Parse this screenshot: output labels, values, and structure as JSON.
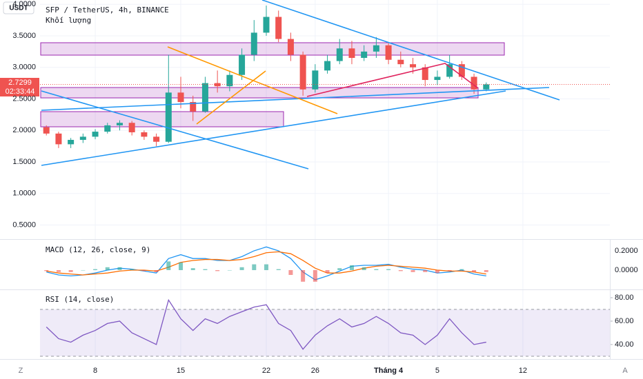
{
  "ui": {
    "currency": "USDT",
    "countdown": "02:33:44",
    "left_button": "Z",
    "right_button": "A"
  },
  "chart_data": [
    {
      "type": "candlestick",
      "title": "SFP / TetherUS, 4h, BINANCE",
      "subtitle": "Khối lượng",
      "up_color": "#26a69a",
      "down_color": "#ef5350",
      "x": [
        4,
        5,
        6,
        7,
        8,
        9,
        10,
        11,
        12,
        13,
        14,
        15,
        16,
        17,
        18,
        19,
        20,
        21,
        22,
        23,
        24,
        25,
        26,
        27,
        28,
        29,
        30,
        31,
        32,
        33,
        34,
        35,
        36,
        37,
        38,
        39,
        40
      ],
      "open": [
        2.05,
        1.95,
        1.78,
        1.85,
        1.9,
        1.98,
        2.08,
        2.12,
        1.97,
        1.9,
        1.82,
        2.6,
        2.45,
        2.3,
        2.75,
        2.7,
        2.88,
        3.2,
        3.55,
        3.8,
        3.45,
        3.2,
        2.65,
        2.95,
        3.1,
        3.3,
        3.15,
        3.25,
        3.35,
        3.12,
        3.05,
        3.0,
        2.8,
        2.85,
        3.05,
        2.85,
        2.65
      ],
      "high": [
        2.08,
        1.98,
        1.88,
        1.95,
        2.02,
        2.12,
        2.16,
        2.15,
        2.0,
        1.95,
        3.2,
        2.85,
        2.55,
        2.85,
        2.95,
        2.95,
        3.3,
        3.75,
        3.98,
        3.9,
        3.55,
        3.25,
        3.05,
        3.2,
        3.45,
        3.42,
        3.35,
        3.48,
        3.4,
        3.25,
        3.15,
        3.05,
        2.95,
        3.2,
        3.1,
        2.9,
        2.76
      ],
      "low": [
        1.92,
        1.72,
        1.72,
        1.8,
        1.86,
        1.95,
        2.0,
        1.92,
        1.85,
        1.75,
        1.8,
        2.35,
        2.15,
        2.28,
        2.6,
        2.62,
        2.8,
        3.1,
        3.5,
        3.4,
        3.1,
        2.55,
        2.6,
        2.9,
        3.05,
        3.05,
        3.1,
        3.15,
        3.05,
        3.0,
        2.9,
        2.7,
        2.72,
        2.82,
        2.8,
        2.58,
        2.62
      ],
      "close": [
        1.95,
        1.78,
        1.85,
        1.9,
        1.98,
        2.08,
        2.12,
        1.97,
        1.9,
        1.82,
        2.6,
        2.45,
        2.3,
        2.75,
        2.7,
        2.88,
        3.2,
        3.55,
        3.8,
        3.45,
        3.2,
        2.65,
        2.95,
        3.1,
        3.3,
        3.15,
        3.25,
        3.35,
        3.12,
        3.05,
        3.0,
        2.8,
        2.85,
        3.05,
        2.85,
        2.65,
        2.7299
      ],
      "xlim": [
        3.48,
        50.12
      ],
      "xticks": [
        8,
        15,
        22,
        26,
        {
          "value": 32,
          "label": "Tháng 4"
        },
        {
          "value": 36,
          "label": "5"
        },
        {
          "value": 43,
          "label": "12"
        }
      ],
      "ylim": [
        0.276,
        4.068
      ],
      "yticks": [
        {
          "value": 0.5,
          "label": "0.5000"
        },
        {
          "value": 1.0,
          "label": "1.0000"
        },
        {
          "value": 1.5,
          "label": "1.5000"
        },
        {
          "value": 2.0,
          "label": "2.0000"
        },
        {
          "value": 2.5,
          "label": "2.5000"
        },
        {
          "value": 3.0,
          "label": "3.0000"
        },
        {
          "value": 3.5,
          "label": "3.5000"
        },
        {
          "value": 4.0,
          "label": "4.0000"
        }
      ],
      "grid": true
    },
    {
      "type": "line",
      "title": "MACD (12, 26, close, 9)",
      "x": [
        4,
        5,
        6,
        7,
        8,
        9,
        10,
        11,
        12,
        13,
        14,
        15,
        16,
        17,
        18,
        19,
        20,
        21,
        22,
        23,
        24,
        25,
        26,
        27,
        28,
        29,
        30,
        31,
        32,
        33,
        34,
        35,
        36,
        37,
        38,
        39,
        40
      ],
      "series": [
        {
          "color": "#2196f3",
          "values": [
            -0.02,
            -0.05,
            -0.06,
            -0.05,
            -0.03,
            0.0,
            0.02,
            0.01,
            -0.01,
            -0.03,
            0.12,
            0.16,
            0.12,
            0.12,
            0.1,
            0.1,
            0.14,
            0.2,
            0.24,
            0.2,
            0.12,
            -0.02,
            -0.1,
            -0.06,
            -0.01,
            0.04,
            0.05,
            0.05,
            0.06,
            0.03,
            0.01,
            0.0,
            -0.03,
            -0.02,
            0.0,
            -0.04,
            -0.06
          ]
        },
        {
          "color": "#ff6d00",
          "values": [
            -0.01,
            -0.03,
            -0.04,
            -0.05,
            -0.04,
            -0.03,
            -0.01,
            0.0,
            0.0,
            -0.01,
            0.03,
            0.08,
            0.1,
            0.11,
            0.11,
            0.1,
            0.11,
            0.14,
            0.18,
            0.19,
            0.17,
            0.1,
            0.02,
            -0.03,
            -0.03,
            -0.01,
            0.02,
            0.04,
            0.05,
            0.04,
            0.03,
            0.02,
            0.0,
            -0.01,
            -0.01,
            -0.02,
            -0.04
          ]
        },
        {
          "kind": "histogram",
          "up_color": "#26a69a",
          "down_color": "#ef5350",
          "values": [
            -0.01,
            -0.02,
            -0.02,
            0.0,
            0.01,
            0.03,
            0.03,
            0.01,
            -0.01,
            -0.02,
            0.09,
            0.08,
            0.02,
            0.01,
            -0.01,
            0.0,
            0.03,
            0.06,
            0.06,
            0.01,
            -0.05,
            -0.12,
            -0.12,
            -0.03,
            0.02,
            0.05,
            0.03,
            0.01,
            0.01,
            -0.01,
            -0.02,
            -0.02,
            -0.03,
            -0.01,
            0.01,
            -0.02,
            -0.02
          ]
        }
      ],
      "ylim": [
        -0.2,
        0.314
      ],
      "yticks": [
        {
          "value": 0,
          "label": "0.0000"
        },
        {
          "value": 0.2,
          "label": "0.2000"
        }
      ]
    },
    {
      "type": "line",
      "title": "RSI (14, close)",
      "x": [
        4,
        5,
        6,
        7,
        8,
        9,
        10,
        11,
        12,
        13,
        14,
        15,
        16,
        17,
        18,
        19,
        20,
        21,
        22,
        23,
        24,
        25,
        26,
        27,
        28,
        29,
        30,
        31,
        32,
        33,
        34,
        35,
        36,
        37,
        38,
        39,
        40
      ],
      "series": [
        {
          "color": "#7e57c2",
          "values": [
            55,
            45,
            42,
            48,
            52,
            58,
            60,
            50,
            45,
            40,
            78,
            62,
            52,
            62,
            58,
            64,
            68,
            72,
            74,
            58,
            52,
            36,
            48,
            56,
            62,
            55,
            58,
            64,
            58,
            50,
            48,
            40,
            48,
            62,
            50,
            40,
            42
          ]
        }
      ],
      "ylim": [
        28.2,
        86.5
      ],
      "yticks": [
        {
          "value": 40,
          "label": "40.00"
        },
        {
          "value": 60,
          "label": "60.00"
        },
        {
          "value": 80,
          "label": "80.00"
        }
      ]
    }
  ]
}
